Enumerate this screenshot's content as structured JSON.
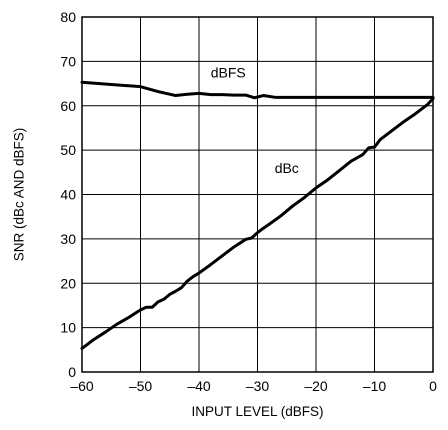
{
  "chart_data": {
    "type": "line",
    "xlabel": "INPUT LEVEL (dBFS)",
    "ylabel": "SNR (dBc AND dBFS)",
    "xlim": [
      -60,
      0
    ],
    "ylim": [
      0,
      80
    ],
    "x_ticks": [
      -60,
      -50,
      -40,
      -30,
      -20,
      -10,
      0
    ],
    "x_tick_labels": [
      "–60",
      "–50",
      "–40",
      "–30",
      "–20",
      "–10",
      "0"
    ],
    "y_ticks": [
      0,
      10,
      20,
      30,
      40,
      50,
      60,
      70,
      80
    ],
    "y_tick_labels": [
      "0",
      "10",
      "20",
      "30",
      "40",
      "50",
      "60",
      "70",
      "80"
    ],
    "grid": true,
    "legend": "none",
    "line_color": "#000000",
    "series": [
      {
        "name": "dBFS",
        "label_at": [
          -35,
          67.5
        ],
        "x": [
          -60,
          -55,
          -50,
          -47,
          -44,
          -42,
          -40,
          -38,
          -36,
          -34,
          -32,
          -30.5,
          -29,
          -27,
          -25,
          -20,
          -15,
          -10,
          -5,
          0
        ],
        "y": [
          65.3,
          64.8,
          64.3,
          63.2,
          62.3,
          62.6,
          62.8,
          62.5,
          62.5,
          62.4,
          62.4,
          61.8,
          62.3,
          61.9,
          61.9,
          61.9,
          61.9,
          61.9,
          61.9,
          61.9
        ]
      },
      {
        "name": "dBc",
        "label_at": [
          -25,
          46
        ],
        "x": [
          -60,
          -58,
          -56,
          -54,
          -52,
          -50,
          -49,
          -48,
          -47,
          -46,
          -45,
          -44,
          -43,
          -42,
          -41,
          -40,
          -38,
          -36,
          -34,
          -32,
          -31,
          -30,
          -29,
          -28,
          -26,
          -24,
          -22,
          -20,
          -18,
          -16,
          -14.5,
          -14,
          -12,
          -11,
          -10,
          -9,
          -7,
          -5,
          -3,
          -1,
          0
        ],
        "y": [
          5.3,
          7.3,
          9.0,
          10.8,
          12.3,
          14.0,
          14.6,
          14.6,
          15.8,
          16.4,
          17.5,
          18.2,
          19.0,
          20.5,
          21.5,
          22.3,
          24.2,
          26.2,
          28.2,
          29.9,
          30.2,
          31.4,
          32.4,
          33.3,
          35.2,
          37.4,
          39.3,
          41.5,
          43.3,
          45.4,
          47.0,
          47.5,
          49.0,
          50.5,
          50.7,
          52.4,
          54.4,
          56.4,
          58.2,
          60.2,
          61.6
        ]
      }
    ]
  }
}
